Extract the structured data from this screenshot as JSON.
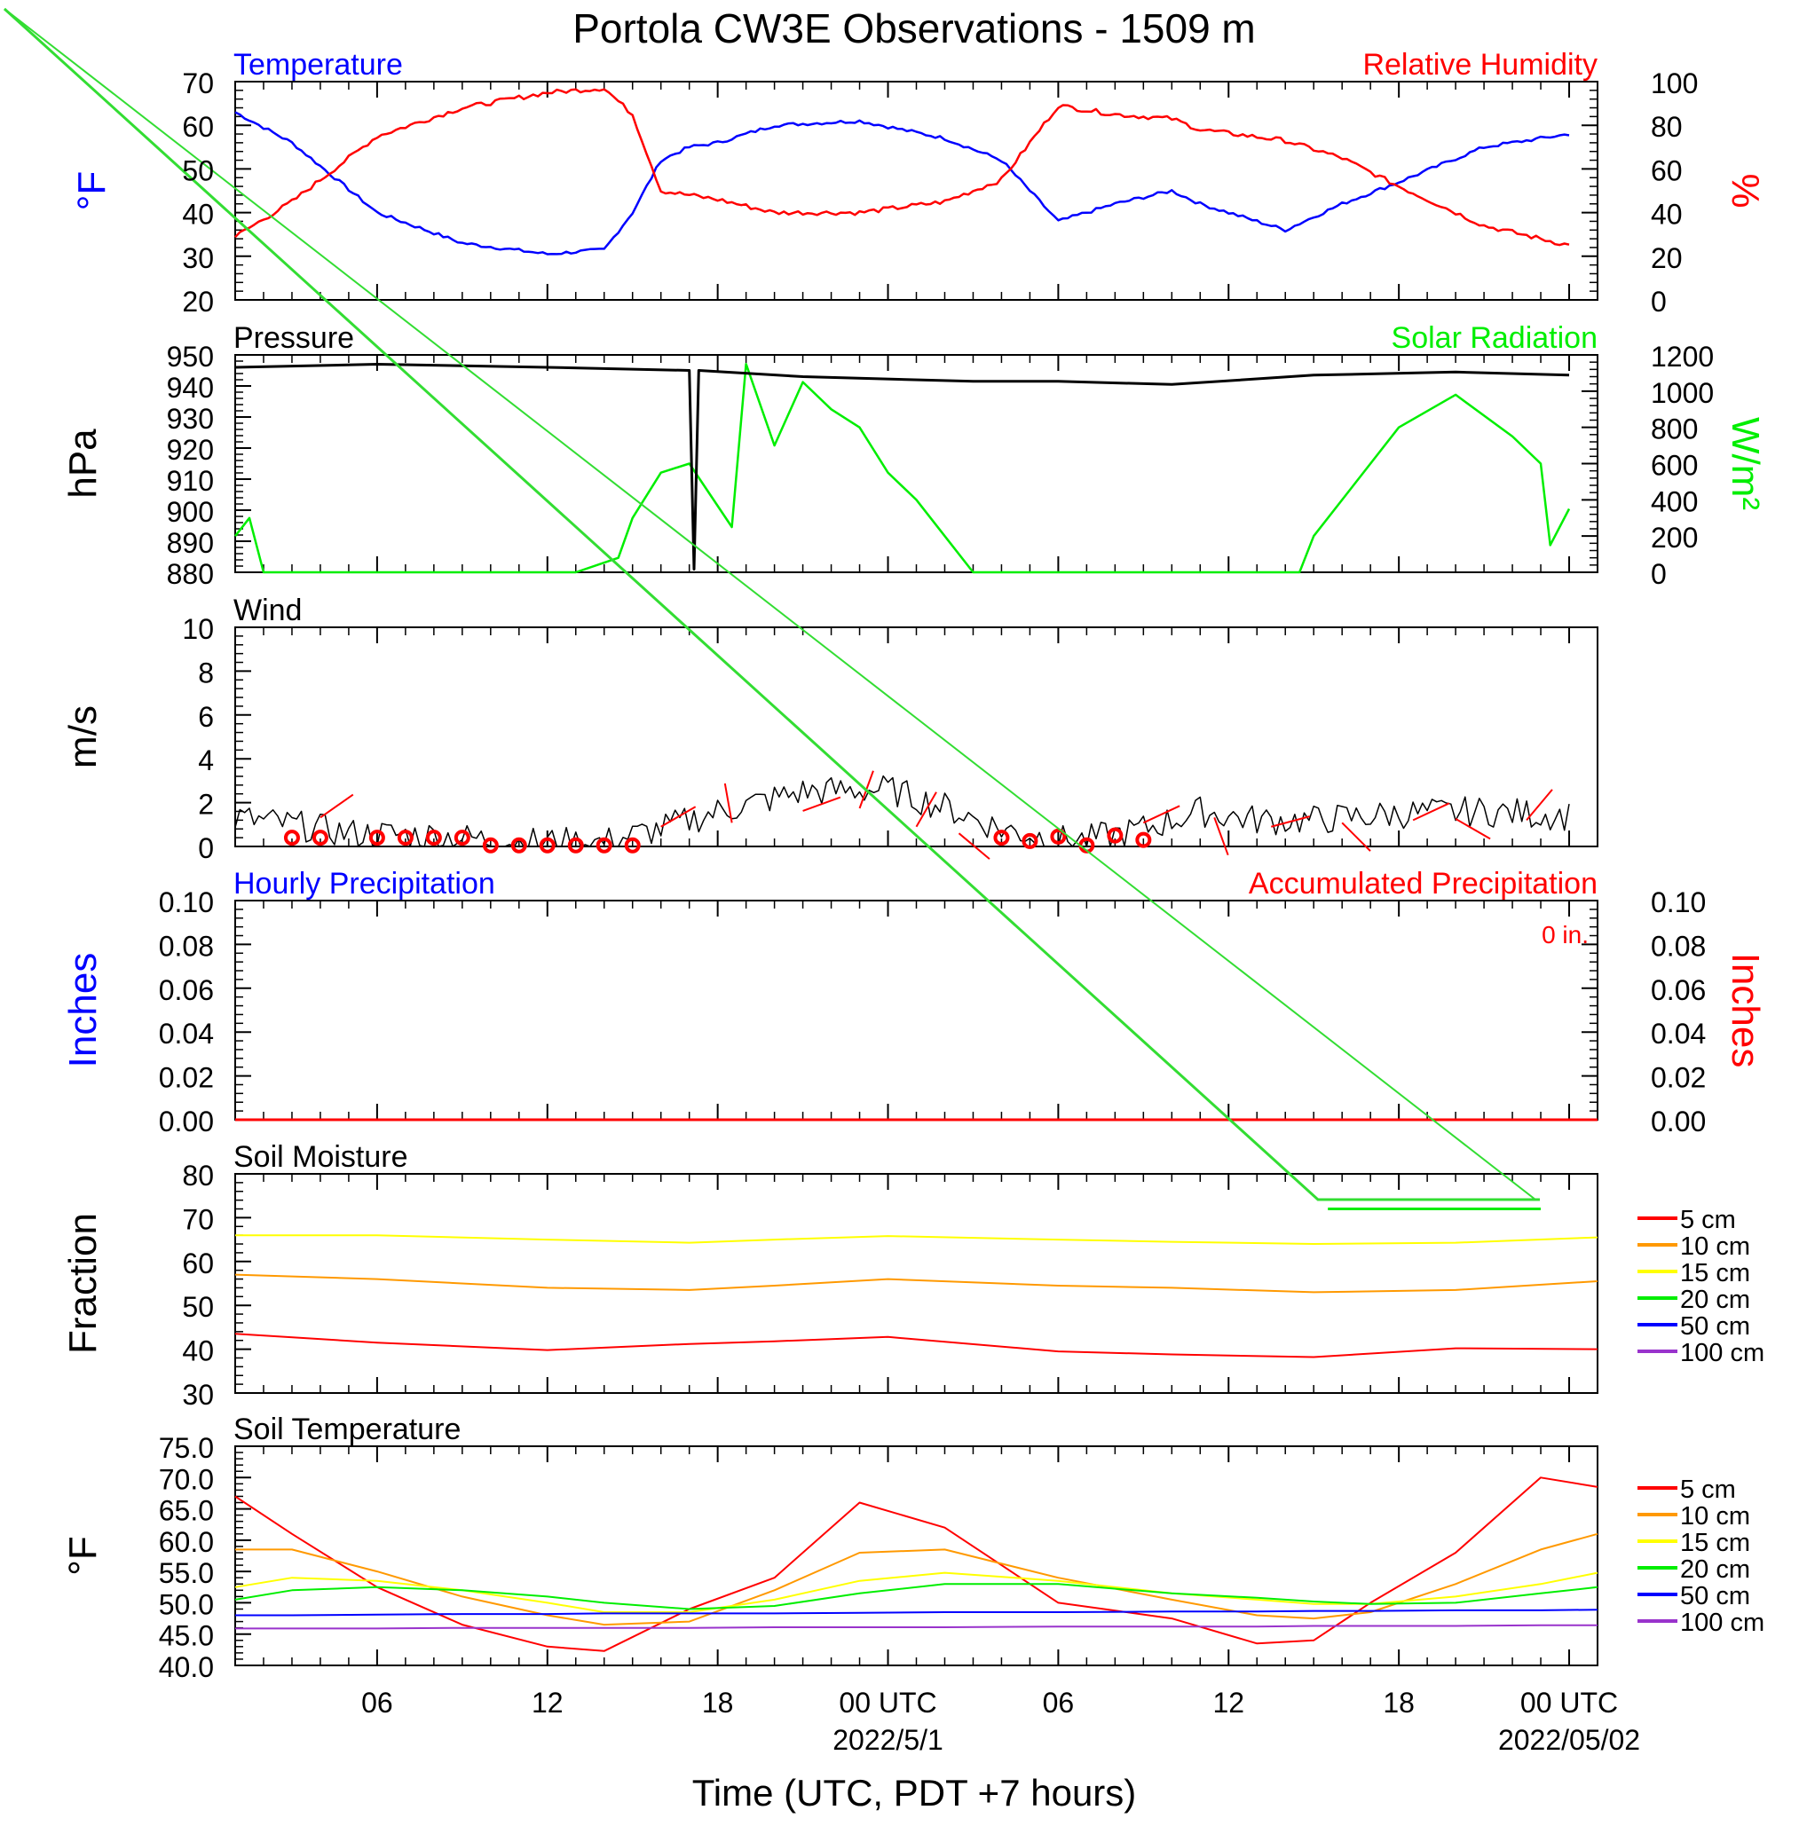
{
  "title": "Portola CW3E Observations - 1509 m",
  "x_axis": {
    "label": "Time (UTC, PDT +7 hours)",
    "tick_labels": [
      "06",
      "12",
      "18",
      "00 UTC",
      "06",
      "12",
      "18",
      "00 UTC"
    ],
    "date_labels": [
      "2022/5/1",
      "2022/05/02"
    ]
  },
  "colors": {
    "temperature": "#0000ff",
    "humidity": "#ff0000",
    "pressure": "#000000",
    "solar": "#00ee00",
    "wind": "#000000",
    "wind_barbs": "#ff0000",
    "precip_hourly": "#0000ff",
    "precip_accum": "#ff0000"
  },
  "chart_data": [
    {
      "type": "line",
      "panel": "temperature_humidity",
      "title_left": "Temperature",
      "title_right": "Relative Humidity",
      "ylabel_left": "°F",
      "ylabel_right": "%",
      "ylim_left": [
        20,
        70
      ],
      "ylim_right": [
        0,
        100
      ],
      "yticks_left": [
        "70",
        "60",
        "50",
        "40",
        "30",
        "20"
      ],
      "yticks_right": [
        "100",
        "80",
        "60",
        "40",
        "20",
        "0"
      ],
      "x": [
        "2022-04-30 01:00",
        "2022-04-30 03:00",
        "2022-04-30 06:00",
        "2022-04-30 09:00",
        "2022-04-30 12:00",
        "2022-04-30 14:00",
        "2022-04-30 15:00",
        "2022-04-30 16:00",
        "2022-04-30 17:00",
        "2022-04-30 18:00",
        "2022-04-30 20:00",
        "2022-04-30 23:00",
        "2022-05-01 02:00",
        "2022-05-01 04:00",
        "2022-05-01 06:00",
        "2022-05-01 08:00",
        "2022-05-01 10:00",
        "2022-05-01 11:00",
        "2022-05-01 14:00",
        "2022-05-01 16:00",
        "2022-05-01 18:00",
        "2022-05-01 21:00",
        "2022-05-02 00:00"
      ],
      "series": [
        {
          "name": "Temperature",
          "axis": "left",
          "values": [
            63,
            56,
            40,
            33,
            30.5,
            31.5,
            40,
            52,
            55,
            56,
            60,
            61,
            57,
            52,
            38,
            42,
            45,
            42,
            36,
            42,
            47,
            55,
            58
          ]
        },
        {
          "name": "Relative Humidity",
          "axis": "right",
          "values": [
            29,
            45,
            75,
            88,
            95,
            97,
            85,
            50,
            48,
            46,
            40,
            40,
            45,
            55,
            89,
            85,
            83,
            78,
            73,
            65,
            52,
            34,
            25
          ]
        }
      ]
    },
    {
      "type": "line",
      "panel": "pressure_solar",
      "title_left": "Pressure",
      "title_right": "Solar Radiation",
      "ylabel_left": "hPa",
      "ylabel_right": "W/m²",
      "ylim_left": [
        880,
        950
      ],
      "ylim_right": [
        0,
        1200
      ],
      "yticks_left": [
        "950",
        "940",
        "930",
        "920",
        "910",
        "900",
        "890",
        "880"
      ],
      "yticks_right": [
        "1200",
        "1000",
        "800",
        "600",
        "400",
        "200",
        "0"
      ],
      "series": [
        {
          "name": "Pressure",
          "axis": "left",
          "x": [
            "2022-04-30 01:00",
            "2022-04-30 06:00",
            "2022-04-30 12:00",
            "2022-04-30 17:00",
            "2022-04-30 17:10",
            "2022-04-30 17:20",
            "2022-04-30 21:00",
            "2022-05-01 03:00",
            "2022-05-01 06:00",
            "2022-05-01 10:00",
            "2022-05-01 15:00",
            "2022-05-01 20:00",
            "2022-05-02 00:00"
          ],
          "values": [
            946,
            947,
            946,
            945,
            881,
            945,
            943,
            941.5,
            941.5,
            940.5,
            943.5,
            944.5,
            943.5
          ]
        },
        {
          "name": "Solar Radiation",
          "axis": "right",
          "x": [
            "2022-04-30 01:00",
            "2022-04-30 01:30",
            "2022-04-30 02:00",
            "2022-04-30 13:00",
            "2022-04-30 14:30",
            "2022-04-30 15:00",
            "2022-04-30 16:00",
            "2022-04-30 17:00",
            "2022-04-30 18:30",
            "2022-04-30 19:00",
            "2022-04-30 20:00",
            "2022-04-30 21:00",
            "2022-04-30 22:00",
            "2022-04-30 23:00",
            "2022-05-01 00:00",
            "2022-05-01 01:00",
            "2022-05-01 02:00",
            "2022-05-01 03:00",
            "2022-05-01 14:30",
            "2022-05-01 15:00",
            "2022-05-01 18:00",
            "2022-05-01 20:00",
            "2022-05-01 22:00",
            "2022-05-01 23:00",
            "2022-05-01 23:20",
            "2022-05-02 00:00"
          ],
          "values": [
            200,
            300,
            0,
            0,
            80,
            300,
            550,
            600,
            250,
            1150,
            700,
            1050,
            900,
            800,
            550,
            400,
            200,
            0,
            0,
            200,
            800,
            980,
            750,
            600,
            150,
            350
          ]
        }
      ]
    },
    {
      "type": "line",
      "panel": "wind",
      "title_left": "Wind",
      "ylabel_left": "m/s",
      "ylim_left": [
        0,
        10
      ],
      "yticks_left": [
        "10",
        "8",
        "6",
        "4",
        "2",
        "0"
      ],
      "x": [
        "2022-04-30 01:00",
        "2022-04-30 03:00",
        "2022-04-30 05:00",
        "2022-04-30 08:00",
        "2022-04-30 11:00",
        "2022-04-30 14:00",
        "2022-04-30 16:00",
        "2022-04-30 18:00",
        "2022-04-30 21:00",
        "2022-05-01 00:00",
        "2022-05-01 02:00",
        "2022-05-01 04:00",
        "2022-05-01 06:00",
        "2022-05-01 07:00",
        "2022-05-01 09:00",
        "2022-05-01 11:00",
        "2022-05-01 13:00",
        "2022-05-01 15:00",
        "2022-05-01 18:00",
        "2022-05-01 21:00",
        "2022-05-02 00:00"
      ],
      "series": [
        {
          "name": "Wind speed",
          "values": [
            1.3,
            1.0,
            0.6,
            0.5,
            0.2,
            0.2,
            0.8,
            1.6,
            2.5,
            2.6,
            1.8,
            0.8,
            0.3,
            0.3,
            0.8,
            1.6,
            1.2,
            1.2,
            1.5,
            1.6,
            1.4
          ]
        }
      ],
      "calm_markers": [
        {
          "x": "2022-04-30 03:00",
          "y": 0.4
        },
        {
          "x": "2022-04-30 04:00",
          "y": 0.4
        },
        {
          "x": "2022-04-30 06:00",
          "y": 0.4
        },
        {
          "x": "2022-04-30 07:00",
          "y": 0.4
        },
        {
          "x": "2022-04-30 08:00",
          "y": 0.4
        },
        {
          "x": "2022-04-30 09:00",
          "y": 0.4
        },
        {
          "x": "2022-04-30 10:00",
          "y": 0.05
        },
        {
          "x": "2022-04-30 11:00",
          "y": 0.05
        },
        {
          "x": "2022-04-30 12:00",
          "y": 0.05
        },
        {
          "x": "2022-04-30 13:00",
          "y": 0.05
        },
        {
          "x": "2022-04-30 14:00",
          "y": 0.05
        },
        {
          "x": "2022-04-30 15:00",
          "y": 0.05
        },
        {
          "x": "2022-05-01 04:00",
          "y": 0.4
        },
        {
          "x": "2022-05-01 05:00",
          "y": 0.25
        },
        {
          "x": "2022-05-01 06:00",
          "y": 0.45
        },
        {
          "x": "2022-05-01 07:00",
          "y": 0.05
        },
        {
          "x": "2022-05-01 08:00",
          "y": 0.5
        },
        {
          "x": "2022-05-01 09:00",
          "y": 0.3
        }
      ]
    },
    {
      "type": "line",
      "panel": "precipitation",
      "title_left": "Hourly Precipitation",
      "title_right": "Accumulated Precipitation",
      "annotation": "0 in.",
      "ylabel_left": "Inches",
      "ylabel_right": "Inches",
      "ylim_left": [
        0,
        0.1
      ],
      "ylim_right": [
        0,
        0.1
      ],
      "yticks_left": [
        "0.10",
        "0.08",
        "0.06",
        "0.04",
        "0.02",
        "0.00"
      ],
      "yticks_right": [
        "0.10",
        "0.08",
        "0.06",
        "0.04",
        "0.02",
        "0.00"
      ],
      "x": [
        "2022-04-30 01:00",
        "2022-05-02 01:00"
      ],
      "series": [
        {
          "name": "Hourly Precipitation",
          "values": [
            0,
            0
          ]
        },
        {
          "name": "Accumulated Precipitation",
          "values": [
            0,
            0
          ]
        }
      ]
    },
    {
      "type": "line",
      "panel": "soil_moisture",
      "title_left": "Soil Moisture",
      "ylabel_left": "Fraction",
      "ylim_left": [
        30,
        80
      ],
      "yticks_left": [
        "80",
        "70",
        "60",
        "50",
        "40",
        "30"
      ],
      "legend": [
        "5 cm",
        "10 cm",
        "15 cm",
        "20 cm",
        "50 cm",
        "100 cm"
      ],
      "legend_colors": [
        "#ff0000",
        "#ff9900",
        "#ffff00",
        "#00ee00",
        "#0000ff",
        "#9933cc"
      ],
      "x": [
        "2022-04-30 01:00",
        "2022-04-30 06:00",
        "2022-04-30 12:00",
        "2022-04-30 17:00",
        "2022-04-30 20:00",
        "2022-05-01 00:00",
        "2022-05-01 06:00",
        "2022-05-01 10:00",
        "2022-05-01 15:00",
        "2022-05-01 20:00",
        "2022-05-02 01:00"
      ],
      "series": [
        {
          "name": "5 cm",
          "values": [
            43.5,
            41.5,
            39.8,
            41.2,
            41.8,
            42.8,
            39.5,
            38.8,
            38.2,
            40.2,
            40
          ]
        },
        {
          "name": "10 cm",
          "values": [
            57,
            56,
            54,
            53.5,
            54.5,
            56,
            54.5,
            54,
            53,
            53.5,
            55.5
          ]
        },
        {
          "name": "15 cm",
          "values": [
            66,
            66,
            65,
            64.3,
            65,
            65.8,
            65,
            64.5,
            64,
            64.3,
            65.5
          ]
        }
      ],
      "annotation_line": {
        "name": "20 cm",
        "x": [
          "2022-05-01 15:30",
          "2022-05-01 23:00"
        ],
        "values": [
          72,
          72
        ]
      }
    },
    {
      "type": "line",
      "panel": "soil_temperature",
      "title_left": "Soil Temperature",
      "ylabel_left": "°F",
      "ylim_left": [
        40,
        75
      ],
      "yticks_left": [
        "75.0",
        "70.0",
        "65.0",
        "60.0",
        "55.0",
        "50.0",
        "45.0",
        "40.0"
      ],
      "legend": [
        "5 cm",
        "10 cm",
        "15 cm",
        "20 cm",
        "50 cm",
        "100 cm"
      ],
      "legend_colors": [
        "#ff0000",
        "#ff9900",
        "#ffff00",
        "#00ee00",
        "#0000ff",
        "#9933cc"
      ],
      "x": [
        "2022-04-30 01:00",
        "2022-04-30 03:00",
        "2022-04-30 06:00",
        "2022-04-30 09:00",
        "2022-04-30 12:00",
        "2022-04-30 14:00",
        "2022-04-30 17:00",
        "2022-04-30 20:00",
        "2022-04-30 23:00",
        "2022-05-01 02:00",
        "2022-05-01 06:00",
        "2022-05-01 10:00",
        "2022-05-01 13:00",
        "2022-05-01 15:00",
        "2022-05-01 17:00",
        "2022-05-01 20:00",
        "2022-05-01 23:00",
        "2022-05-02 01:00"
      ],
      "series": [
        {
          "name": "5 cm",
          "values": [
            67,
            61,
            52.5,
            46.5,
            43,
            42.3,
            49,
            54,
            66,
            62,
            50,
            47.5,
            43.5,
            44,
            50,
            58,
            70,
            68.5
          ]
        },
        {
          "name": "10 cm",
          "values": [
            58.5,
            58.5,
            55,
            51,
            48,
            46.5,
            47,
            52,
            58,
            58.5,
            54,
            50.5,
            48,
            47.5,
            48.5,
            53,
            58.5,
            61
          ]
        },
        {
          "name": "15 cm",
          "values": [
            52.5,
            54,
            53.5,
            52,
            50,
            48.5,
            48.5,
            50.5,
            53.5,
            54.8,
            53.5,
            51.5,
            50.5,
            49.8,
            49.8,
            51,
            53,
            54.8
          ]
        },
        {
          "name": "20 cm",
          "values": [
            50.5,
            52,
            52.5,
            52,
            51,
            50,
            49,
            49.5,
            51.5,
            53,
            53,
            51.5,
            50.8,
            50.2,
            49.8,
            50,
            51.5,
            52.5
          ]
        },
        {
          "name": "50 cm",
          "values": [
            48,
            48,
            48.1,
            48.2,
            48.2,
            48.3,
            48.3,
            48.3,
            48.4,
            48.5,
            48.5,
            48.6,
            48.6,
            48.7,
            48.7,
            48.8,
            48.8,
            48.9
          ]
        },
        {
          "name": "100 cm",
          "values": [
            45.9,
            45.9,
            45.9,
            46,
            46,
            46,
            46,
            46.1,
            46.1,
            46.1,
            46.2,
            46.2,
            46.2,
            46.3,
            46.3,
            46.3,
            46.4,
            46.4
          ]
        }
      ]
    }
  ]
}
